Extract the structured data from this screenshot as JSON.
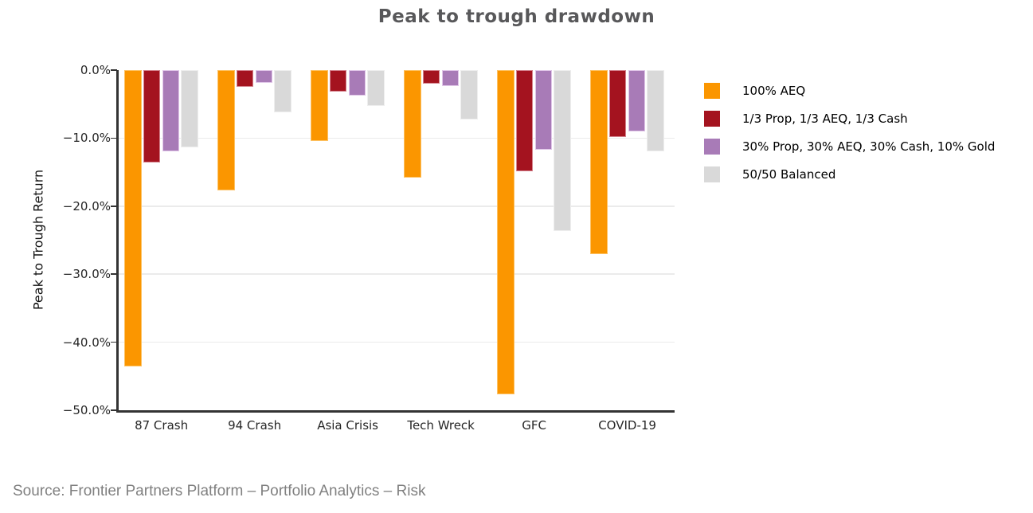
{
  "source_note": "Source: Frontier Partners Platform – Portfolio Analytics – Risk",
  "colors": {
    "background": "#FFFFFF",
    "axis": "#333333",
    "grid": "#EBEBEB",
    "title_text": "#58585A",
    "tick_text": "#262626",
    "source_text": "#808080"
  },
  "chart_data": {
    "type": "bar",
    "title": "Peak to trough drawdown",
    "xlabel": "",
    "ylabel": "Peak to Trough Return",
    "categories": [
      "87 Crash",
      "94 Crash",
      "Asia Crisis",
      "Tech Wreck",
      "GFC",
      "COVID-19"
    ],
    "series": [
      {
        "name": "100% AEQ",
        "color": "#FB9600",
        "border_color": "#FDC264",
        "values": [
          -43.6,
          -17.7,
          -10.4,
          -15.8,
          -47.6,
          -27.0
        ]
      },
      {
        "name": "1/3 Prop, 1/3 AEQ, 1/3 Cash",
        "color": "#A4131F",
        "border_color": "#D4838D",
        "values": [
          -13.6,
          -2.5,
          -3.2,
          -2.0,
          -14.9,
          -9.8
        ]
      },
      {
        "name": "30% Prop, 30% AEQ, 30% Cash, 10% Gold",
        "color": "#A87BB7",
        "border_color": "#E0C6E8",
        "values": [
          -12.0,
          -1.9,
          -3.7,
          -2.4,
          -11.7,
          -9.0
        ]
      },
      {
        "name": "50/50 Balanced",
        "color": "#D9D9D9",
        "border_color": "#EEEEEE",
        "values": [
          -11.4,
          -6.2,
          -5.3,
          -7.3,
          -23.7,
          -12.0
        ]
      }
    ],
    "ylim": [
      -50,
      0
    ],
    "yticks": [
      0,
      -10,
      -20,
      -30,
      -40,
      -50
    ],
    "ytick_labels": [
      "0.0%",
      "−10.0%",
      "−20.0%",
      "−30.0%",
      "−40.0%",
      "−50.0%"
    ],
    "grid": true,
    "legend_position": "right"
  }
}
